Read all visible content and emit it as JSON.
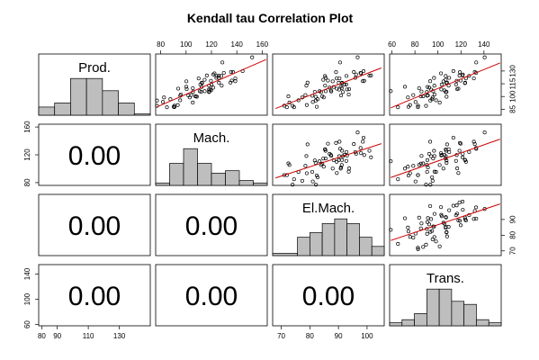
{
  "chart_data": {
    "type": "scatter",
    "title": "Kendall tau Correlation Plot",
    "variables": [
      "Prod.",
      "Mach.",
      "El.Mach.",
      "Trans."
    ],
    "lower_panel_text": "0.00",
    "axes": {
      "Prod.": {
        "range": [
          78,
          150
        ],
        "ticks": [
          80,
          90,
          110,
          130
        ]
      },
      "Mach.": {
        "range": [
          76,
          164
        ],
        "ticks": [
          80,
          100,
          120,
          140,
          160
        ],
        "label_ticks": [
          80,
          120,
          160
        ]
      },
      "El.Mach.": {
        "range": [
          67,
          106
        ],
        "ticks": [
          70,
          80,
          90,
          100
        ],
        "label_ticks": [
          70,
          80,
          90,
          100
        ]
      },
      "Trans.": {
        "range": [
          58,
          155
        ],
        "ticks": [
          60,
          80,
          100,
          120,
          140
        ],
        "label_ticks": [
          60,
          100,
          140
        ]
      }
    },
    "tick_labels": {
      "top": {
        "Mach.": [
          80,
          100,
          120,
          140,
          160
        ],
        "Trans.": [
          60,
          80,
          100,
          120,
          140
        ]
      },
      "bottom": {
        "Prod.": [
          80,
          90,
          110,
          130
        ],
        "El.Mach.": [
          70,
          80,
          90,
          100
        ]
      },
      "left": {
        "Mach.": [
          80,
          120,
          160
        ],
        "Trans.": [
          60,
          100,
          140
        ]
      },
      "right": {
        "Prod.": [
          85,
          100,
          115,
          130
        ],
        "El.Mach.": [
          70,
          80,
          90
        ]
      }
    },
    "histograms": {
      "Prod.": {
        "breaks": [
          75,
          85,
          95,
          105,
          115,
          125,
          135,
          145
        ],
        "counts": [
          2,
          3,
          9,
          9,
          6,
          3,
          0.3
        ]
      },
      "Mach.": {
        "breaks": [
          70,
          80,
          90,
          100,
          110,
          120,
          130,
          140,
          150
        ],
        "counts": [
          1,
          9,
          15,
          9,
          5,
          6,
          2,
          1
        ]
      },
      "El.Mach.": {
        "breaks": [
          60,
          70,
          75,
          80,
          85,
          90,
          95,
          100,
          105
        ],
        "counts": [
          0.5,
          4,
          5,
          7,
          8,
          7,
          4,
          2
        ]
      },
      "Trans.": {
        "breaks": [
          60,
          70,
          80,
          90,
          100,
          110,
          120,
          130,
          140,
          150
        ],
        "counts": [
          1,
          2,
          4,
          12,
          12,
          8,
          7,
          2,
          1
        ]
      }
    },
    "grid": false,
    "legend": "none",
    "point_color": "#000000",
    "line_color": "#cc0000",
    "bar_fill": "#bebebe"
  }
}
